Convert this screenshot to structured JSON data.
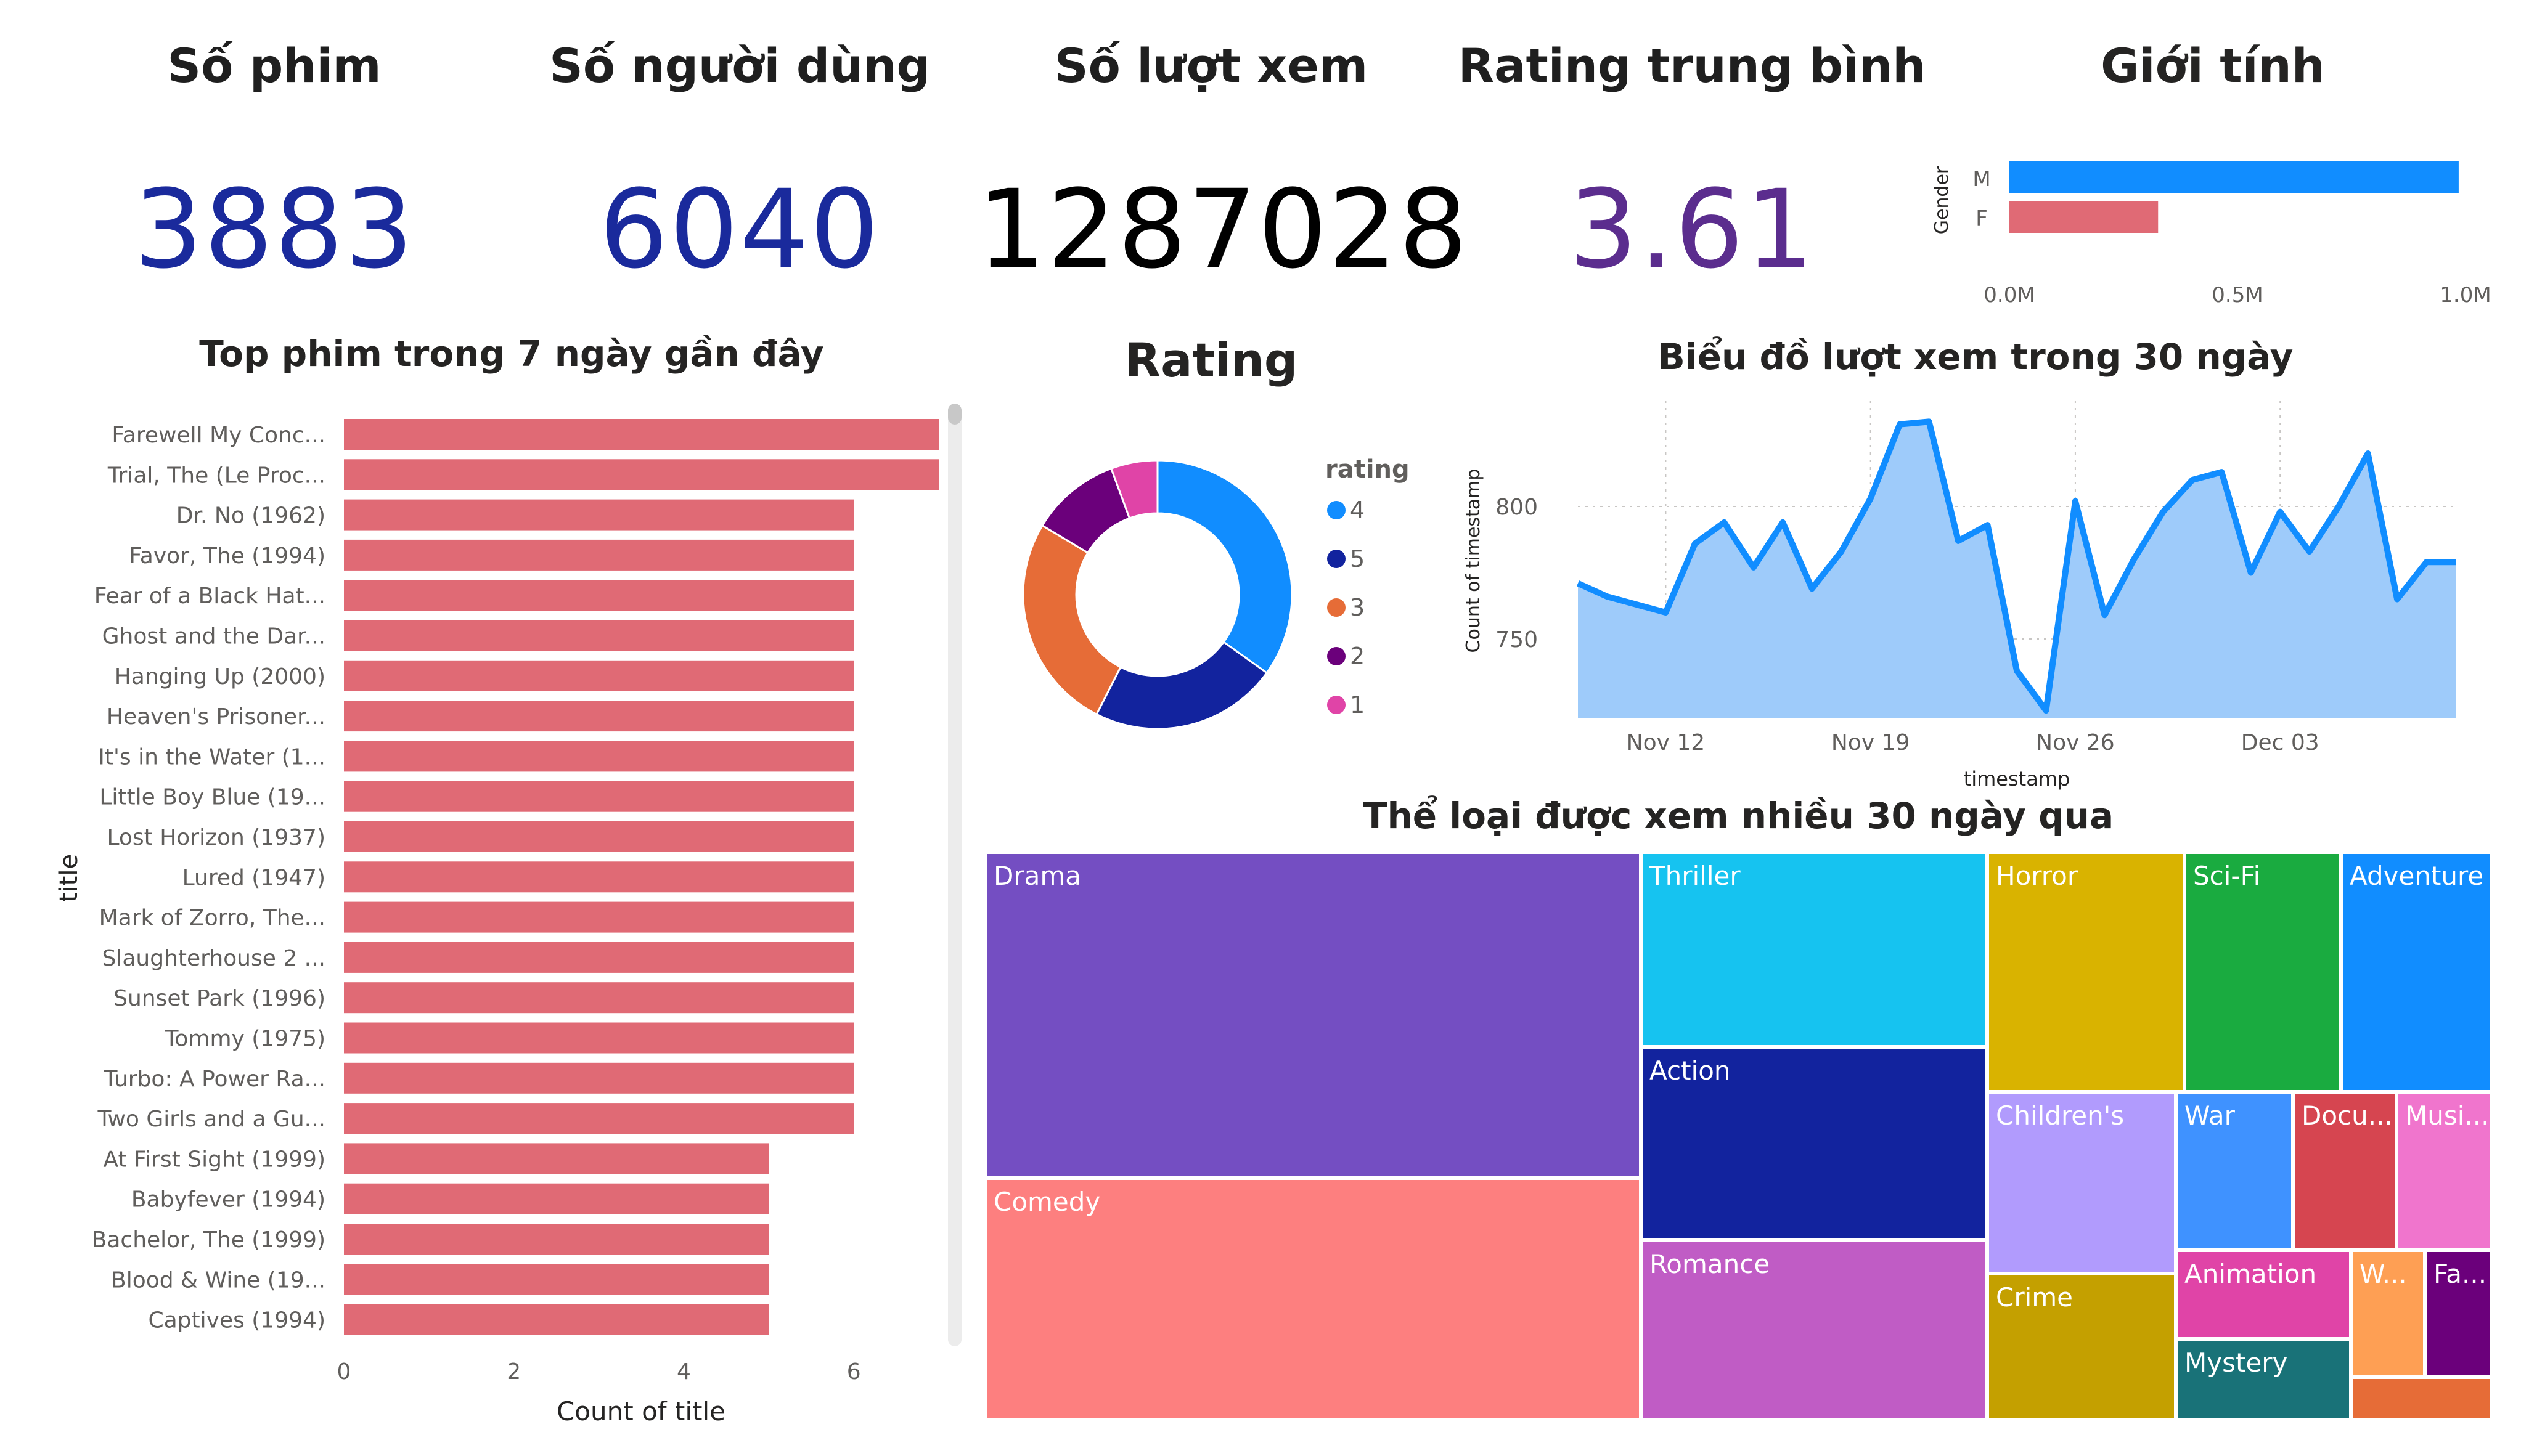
{
  "kpis": {
    "films": {
      "label": "Số phim",
      "value": "3883",
      "color": "#1a2a9c"
    },
    "users": {
      "label": "Số người dùng",
      "value": "6040",
      "color": "#1a2a9c"
    },
    "views": {
      "label": "Số lượt xem",
      "value": "1287028",
      "color": "#000000"
    },
    "rating": {
      "label": "Rating trung bình",
      "value": "3.61",
      "color": "#5b2d8e"
    }
  },
  "gender": {
    "title": "Giới tính",
    "axis_label": "Gender",
    "tick_labels": [
      "0.0M",
      "0.5M",
      "1.0M"
    ]
  },
  "top_films": {
    "title": "Top phim trong 7 ngày gần đây",
    "xlabel": "Count of title",
    "ylabel": "title",
    "tick_labels": [
      "0",
      "2",
      "4",
      "6"
    ]
  },
  "rating_donut": {
    "title": "Rating",
    "legend_title": "rating"
  },
  "views_30": {
    "title": "Biểu đồ lượt xem trong 30 ngày",
    "xlabel": "timestamp",
    "ylabel": "Count of timestamp",
    "x_ticks": [
      "Nov 12",
      "Nov 19",
      "Nov 26",
      "Dec 03"
    ],
    "y_ticks": [
      "800",
      "750"
    ]
  },
  "treemap": {
    "title": "Thể loại được xem nhiều 30 ngày qua",
    "labels": {
      "drama": "Drama",
      "comedy": "Comedy",
      "thriller": "Thriller",
      "action": "Action",
      "romance": "Romance",
      "horror": "Horror",
      "childrens": "Children's",
      "crime": "Crime",
      "scifi": "Sci-Fi",
      "adventure": "Adventure",
      "war": "War",
      "docu": "Docu...",
      "musi": "Musi...",
      "animation": "Animation",
      "w": "W...",
      "fa": "Fa...",
      "mystery": "Mystery"
    },
    "colors": {
      "drama": "#744ec2",
      "comedy": "#fd7f7f",
      "thriller": "#16c3f0",
      "action": "#12239e",
      "romance": "#c05cc5",
      "horror": "#d9b300",
      "childrens": "#b19bfd",
      "crime": "#c4a000",
      "scifi": "#1aab40",
      "adventure": "#118dff",
      "war": "#3f92ff",
      "docu": "#d64550",
      "musi": "#f075cd",
      "animation": "#e044a7",
      "w": "#fe9f54",
      "fa": "#6b007b",
      "mystery": "#197278",
      "other": "#e66c37"
    }
  },
  "chart_data": [
    {
      "type": "bar",
      "orientation": "horizontal",
      "title": "Giới tính",
      "ylabel": "Gender",
      "categories": [
        "M",
        "F"
      ],
      "values": [
        985000,
        326000
      ],
      "xlim": [
        0,
        1000000
      ],
      "colors": [
        "#118dff",
        "#e06a75"
      ]
    },
    {
      "type": "bar",
      "orientation": "horizontal",
      "title": "Top phim trong 7 ngày gần đây",
      "xlabel": "Count of title",
      "ylabel": "title",
      "xlim": [
        0,
        7
      ],
      "bar_color": "#e06a75",
      "categories": [
        "Farewell My Conc...",
        "Trial, The (Le Proc...",
        "Dr. No (1962)",
        "Favor, The (1994)",
        "Fear of a Black Hat...",
        "Ghost and the Dar...",
        "Hanging Up (2000)",
        "Heaven's Prisoner...",
        "It's in the Water (1...",
        "Little Boy Blue (19...",
        "Lost Horizon (1937)",
        "Lured (1947)",
        "Mark of Zorro, The...",
        "Slaughterhouse 2 ...",
        "Sunset Park (1996)",
        "Tommy (1975)",
        "Turbo: A Power Ra...",
        "Two Girls and a Gu...",
        "At First Sight (1999)",
        "Babyfever (1994)",
        "Bachelor, The (1999)",
        "Blood & Wine (19...",
        "Captives (1994)"
      ],
      "values": [
        7,
        7,
        6,
        6,
        6,
        6,
        6,
        6,
        6,
        6,
        6,
        6,
        6,
        6,
        6,
        6,
        6,
        6,
        5,
        5,
        5,
        5,
        5
      ]
    },
    {
      "type": "pie",
      "donut": true,
      "title": "Rating",
      "legend_title": "rating",
      "categories": [
        "4",
        "5",
        "3",
        "2",
        "1"
      ],
      "values": [
        34.9,
        22.6,
        26.1,
        10.8,
        5.6
      ],
      "colors": [
        "#118dff",
        "#12239e",
        "#e66c37",
        "#6b007b",
        "#e044a7"
      ]
    },
    {
      "type": "area",
      "title": "Biểu đồ lượt xem trong 30 ngày",
      "xlabel": "timestamp",
      "ylabel": "Count of timestamp",
      "x_ticks": [
        "Nov 12",
        "Nov 19",
        "Nov 26",
        "Dec 03"
      ],
      "ylim": [
        720,
        840
      ],
      "color": "#118dff",
      "fill": "#9ecbfa",
      "x": [
        "Nov 09",
        "Nov 10",
        "Nov 11",
        "Nov 12",
        "Nov 13",
        "Nov 14",
        "Nov 15",
        "Nov 16",
        "Nov 17",
        "Nov 18",
        "Nov 19",
        "Nov 20",
        "Nov 21",
        "Nov 22",
        "Nov 23",
        "Nov 24",
        "Nov 25",
        "Nov 26",
        "Nov 27",
        "Nov 28",
        "Nov 29",
        "Nov 30",
        "Dec 01",
        "Dec 02",
        "Dec 03",
        "Dec 04",
        "Dec 05",
        "Dec 06",
        "Dec 07",
        "Dec 08",
        "Dec 09"
      ],
      "values": [
        771,
        766,
        763,
        760,
        786,
        794,
        777,
        794,
        769,
        783,
        803,
        831,
        832,
        787,
        793,
        738,
        723,
        802,
        759,
        780,
        798,
        810,
        813,
        775,
        798,
        783,
        800,
        820,
        765,
        779,
        779
      ]
    },
    {
      "type": "treemap",
      "title": "Thể loại được xem nhiều 30 ngày qua",
      "categories": [
        "Drama",
        "Comedy",
        "Thriller",
        "Action",
        "Romance",
        "Horror",
        "Children's",
        "Crime",
        "Sci-Fi",
        "Adventure",
        "War",
        "Docu...",
        "Musi...",
        "Animation",
        "W...",
        "Fa...",
        "Mystery"
      ]
    }
  ]
}
